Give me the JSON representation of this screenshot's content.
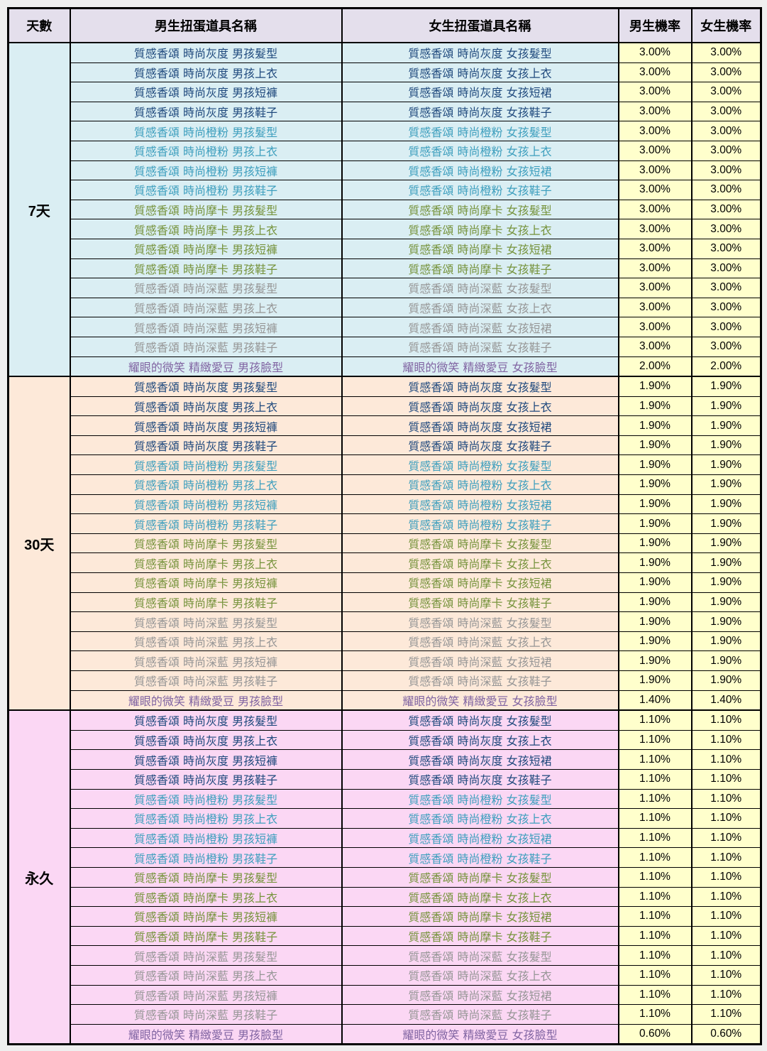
{
  "colors": {
    "page_bg": "#EFEFEF",
    "header_bg": "#E4DFEC",
    "rate_bg": "#FFFFCC",
    "section_bgs": [
      "#DAEEF3",
      "#FDE9D9",
      "#FBD7F4"
    ],
    "text": {
      "navy": "#1F497D",
      "teal": "#3E9FBE",
      "olive": "#76933C",
      "silver": "#969696",
      "purple": "#8064A2"
    }
  },
  "table": {
    "headers": {
      "days": "天數",
      "male_item": "男生扭蛋道具名稱",
      "female_item": "女生扭蛋道具名稱",
      "male_rate": "男生機率",
      "female_rate": "女生機率"
    },
    "sections": [
      {
        "days": "7天",
        "rows": [
          {
            "m": "質感香頌 時尚灰度 男孩髮型",
            "f": "質感香頌 時尚灰度 女孩髮型",
            "mr": "3.00%",
            "fr": "3.00%",
            "c": "navy"
          },
          {
            "m": "質感香頌 時尚灰度 男孩上衣",
            "f": "質感香頌 時尚灰度 女孩上衣",
            "mr": "3.00%",
            "fr": "3.00%",
            "c": "navy"
          },
          {
            "m": "質感香頌 時尚灰度 男孩短褲",
            "f": "質感香頌 時尚灰度 女孩短裙",
            "mr": "3.00%",
            "fr": "3.00%",
            "c": "navy"
          },
          {
            "m": "質感香頌 時尚灰度 男孩鞋子",
            "f": "質感香頌 時尚灰度 女孩鞋子",
            "mr": "3.00%",
            "fr": "3.00%",
            "c": "navy"
          },
          {
            "m": "質感香頌 時尚橙粉 男孩髮型",
            "f": "質感香頌 時尚橙粉 女孩髮型",
            "mr": "3.00%",
            "fr": "3.00%",
            "c": "teal"
          },
          {
            "m": "質感香頌 時尚橙粉 男孩上衣",
            "f": "質感香頌 時尚橙粉 女孩上衣",
            "mr": "3.00%",
            "fr": "3.00%",
            "c": "teal"
          },
          {
            "m": "質感香頌 時尚橙粉 男孩短褲",
            "f": "質感香頌 時尚橙粉 女孩短裙",
            "mr": "3.00%",
            "fr": "3.00%",
            "c": "teal"
          },
          {
            "m": "質感香頌 時尚橙粉 男孩鞋子",
            "f": "質感香頌 時尚橙粉 女孩鞋子",
            "mr": "3.00%",
            "fr": "3.00%",
            "c": "teal"
          },
          {
            "m": "質感香頌 時尚摩卡 男孩髮型",
            "f": "質感香頌 時尚摩卡 女孩髮型",
            "mr": "3.00%",
            "fr": "3.00%",
            "c": "olive"
          },
          {
            "m": "質感香頌 時尚摩卡 男孩上衣",
            "f": "質感香頌 時尚摩卡 女孩上衣",
            "mr": "3.00%",
            "fr": "3.00%",
            "c": "olive"
          },
          {
            "m": "質感香頌 時尚摩卡 男孩短褲",
            "f": "質感香頌 時尚摩卡 女孩短裙",
            "mr": "3.00%",
            "fr": "3.00%",
            "c": "olive"
          },
          {
            "m": "質感香頌 時尚摩卡 男孩鞋子",
            "f": "質感香頌 時尚摩卡 女孩鞋子",
            "mr": "3.00%",
            "fr": "3.00%",
            "c": "olive"
          },
          {
            "m": "質感香頌 時尚深藍 男孩髮型",
            "f": "質感香頌 時尚深藍 女孩髮型",
            "mr": "3.00%",
            "fr": "3.00%",
            "c": "silver"
          },
          {
            "m": "質感香頌 時尚深藍 男孩上衣",
            "f": "質感香頌 時尚深藍 女孩上衣",
            "mr": "3.00%",
            "fr": "3.00%",
            "c": "silver"
          },
          {
            "m": "質感香頌 時尚深藍 男孩短褲",
            "f": "質感香頌 時尚深藍 女孩短裙",
            "mr": "3.00%",
            "fr": "3.00%",
            "c": "silver"
          },
          {
            "m": "質感香頌 時尚深藍 男孩鞋子",
            "f": "質感香頌 時尚深藍 女孩鞋子",
            "mr": "3.00%",
            "fr": "3.00%",
            "c": "silver"
          },
          {
            "m": "耀眼的微笑 精緻愛豆 男孩臉型",
            "f": "耀眼的微笑 精緻愛豆 女孩臉型",
            "mr": "2.00%",
            "fr": "2.00%",
            "c": "purple"
          }
        ]
      },
      {
        "days": "30天",
        "rows": [
          {
            "m": "質感香頌 時尚灰度 男孩髮型",
            "f": "質感香頌 時尚灰度 女孩髮型",
            "mr": "1.90%",
            "fr": "1.90%",
            "c": "navy"
          },
          {
            "m": "質感香頌 時尚灰度 男孩上衣",
            "f": "質感香頌 時尚灰度 女孩上衣",
            "mr": "1.90%",
            "fr": "1.90%",
            "c": "navy"
          },
          {
            "m": "質感香頌 時尚灰度 男孩短褲",
            "f": "質感香頌 時尚灰度 女孩短裙",
            "mr": "1.90%",
            "fr": "1.90%",
            "c": "navy"
          },
          {
            "m": "質感香頌 時尚灰度 男孩鞋子",
            "f": "質感香頌 時尚灰度 女孩鞋子",
            "mr": "1.90%",
            "fr": "1.90%",
            "c": "navy"
          },
          {
            "m": "質感香頌 時尚橙粉 男孩髮型",
            "f": "質感香頌 時尚橙粉 女孩髮型",
            "mr": "1.90%",
            "fr": "1.90%",
            "c": "teal"
          },
          {
            "m": "質感香頌 時尚橙粉 男孩上衣",
            "f": "質感香頌 時尚橙粉 女孩上衣",
            "mr": "1.90%",
            "fr": "1.90%",
            "c": "teal"
          },
          {
            "m": "質感香頌 時尚橙粉 男孩短褲",
            "f": "質感香頌 時尚橙粉 女孩短裙",
            "mr": "1.90%",
            "fr": "1.90%",
            "c": "teal"
          },
          {
            "m": "質感香頌 時尚橙粉 男孩鞋子",
            "f": "質感香頌 時尚橙粉 女孩鞋子",
            "mr": "1.90%",
            "fr": "1.90%",
            "c": "teal"
          },
          {
            "m": "質感香頌 時尚摩卡 男孩髮型",
            "f": "質感香頌 時尚摩卡 女孩髮型",
            "mr": "1.90%",
            "fr": "1.90%",
            "c": "olive"
          },
          {
            "m": "質感香頌 時尚摩卡 男孩上衣",
            "f": "質感香頌 時尚摩卡 女孩上衣",
            "mr": "1.90%",
            "fr": "1.90%",
            "c": "olive"
          },
          {
            "m": "質感香頌 時尚摩卡 男孩短褲",
            "f": "質感香頌 時尚摩卡 女孩短裙",
            "mr": "1.90%",
            "fr": "1.90%",
            "c": "olive"
          },
          {
            "m": "質感香頌 時尚摩卡 男孩鞋子",
            "f": "質感香頌 時尚摩卡 女孩鞋子",
            "mr": "1.90%",
            "fr": "1.90%",
            "c": "olive"
          },
          {
            "m": "質感香頌 時尚深藍 男孩髮型",
            "f": "質感香頌 時尚深藍 女孩髮型",
            "mr": "1.90%",
            "fr": "1.90%",
            "c": "silver"
          },
          {
            "m": "質感香頌 時尚深藍 男孩上衣",
            "f": "質感香頌 時尚深藍 女孩上衣",
            "mr": "1.90%",
            "fr": "1.90%",
            "c": "silver"
          },
          {
            "m": "質感香頌 時尚深藍 男孩短褲",
            "f": "質感香頌 時尚深藍 女孩短裙",
            "mr": "1.90%",
            "fr": "1.90%",
            "c": "silver"
          },
          {
            "m": "質感香頌 時尚深藍 男孩鞋子",
            "f": "質感香頌 時尚深藍 女孩鞋子",
            "mr": "1.90%",
            "fr": "1.90%",
            "c": "silver"
          },
          {
            "m": "耀眼的微笑 精緻愛豆 男孩臉型",
            "f": "耀眼的微笑 精緻愛豆 女孩臉型",
            "mr": "1.40%",
            "fr": "1.40%",
            "c": "purple"
          }
        ]
      },
      {
        "days": "永久",
        "rows": [
          {
            "m": "質感香頌 時尚灰度 男孩髮型",
            "f": "質感香頌 時尚灰度 女孩髮型",
            "mr": "1.10%",
            "fr": "1.10%",
            "c": "navy"
          },
          {
            "m": "質感香頌 時尚灰度 男孩上衣",
            "f": "質感香頌 時尚灰度 女孩上衣",
            "mr": "1.10%",
            "fr": "1.10%",
            "c": "navy"
          },
          {
            "m": "質感香頌 時尚灰度 男孩短褲",
            "f": "質感香頌 時尚灰度 女孩短裙",
            "mr": "1.10%",
            "fr": "1.10%",
            "c": "navy"
          },
          {
            "m": "質感香頌 時尚灰度 男孩鞋子",
            "f": "質感香頌 時尚灰度 女孩鞋子",
            "mr": "1.10%",
            "fr": "1.10%",
            "c": "navy"
          },
          {
            "m": "質感香頌 時尚橙粉 男孩髮型",
            "f": "質感香頌 時尚橙粉 女孩髮型",
            "mr": "1.10%",
            "fr": "1.10%",
            "c": "teal"
          },
          {
            "m": "質感香頌 時尚橙粉 男孩上衣",
            "f": "質感香頌 時尚橙粉 女孩上衣",
            "mr": "1.10%",
            "fr": "1.10%",
            "c": "teal"
          },
          {
            "m": "質感香頌 時尚橙粉 男孩短褲",
            "f": "質感香頌 時尚橙粉 女孩短裙",
            "mr": "1.10%",
            "fr": "1.10%",
            "c": "teal"
          },
          {
            "m": "質感香頌 時尚橙粉 男孩鞋子",
            "f": "質感香頌 時尚橙粉 女孩鞋子",
            "mr": "1.10%",
            "fr": "1.10%",
            "c": "teal"
          },
          {
            "m": "質感香頌 時尚摩卡 男孩髮型",
            "f": "質感香頌 時尚摩卡 女孩髮型",
            "mr": "1.10%",
            "fr": "1.10%",
            "c": "olive"
          },
          {
            "m": "質感香頌 時尚摩卡 男孩上衣",
            "f": "質感香頌 時尚摩卡 女孩上衣",
            "mr": "1.10%",
            "fr": "1.10%",
            "c": "olive"
          },
          {
            "m": "質感香頌 時尚摩卡 男孩短褲",
            "f": "質感香頌 時尚摩卡 女孩短裙",
            "mr": "1.10%",
            "fr": "1.10%",
            "c": "olive"
          },
          {
            "m": "質感香頌 時尚摩卡 男孩鞋子",
            "f": "質感香頌 時尚摩卡 女孩鞋子",
            "mr": "1.10%",
            "fr": "1.10%",
            "c": "olive"
          },
          {
            "m": "質感香頌 時尚深藍 男孩髮型",
            "f": "質感香頌 時尚深藍 女孩髮型",
            "mr": "1.10%",
            "fr": "1.10%",
            "c": "silver"
          },
          {
            "m": "質感香頌 時尚深藍 男孩上衣",
            "f": "質感香頌 時尚深藍 女孩上衣",
            "mr": "1.10%",
            "fr": "1.10%",
            "c": "silver"
          },
          {
            "m": "質感香頌 時尚深藍 男孩短褲",
            "f": "質感香頌 時尚深藍 女孩短裙",
            "mr": "1.10%",
            "fr": "1.10%",
            "c": "silver"
          },
          {
            "m": "質感香頌 時尚深藍 男孩鞋子",
            "f": "質感香頌 時尚深藍 女孩鞋子",
            "mr": "1.10%",
            "fr": "1.10%",
            "c": "silver"
          },
          {
            "m": "耀眼的微笑 精緻愛豆 男孩臉型",
            "f": "耀眼的微笑 精緻愛豆 女孩臉型",
            "mr": "0.60%",
            "fr": "0.60%",
            "c": "purple"
          }
        ]
      }
    ]
  }
}
